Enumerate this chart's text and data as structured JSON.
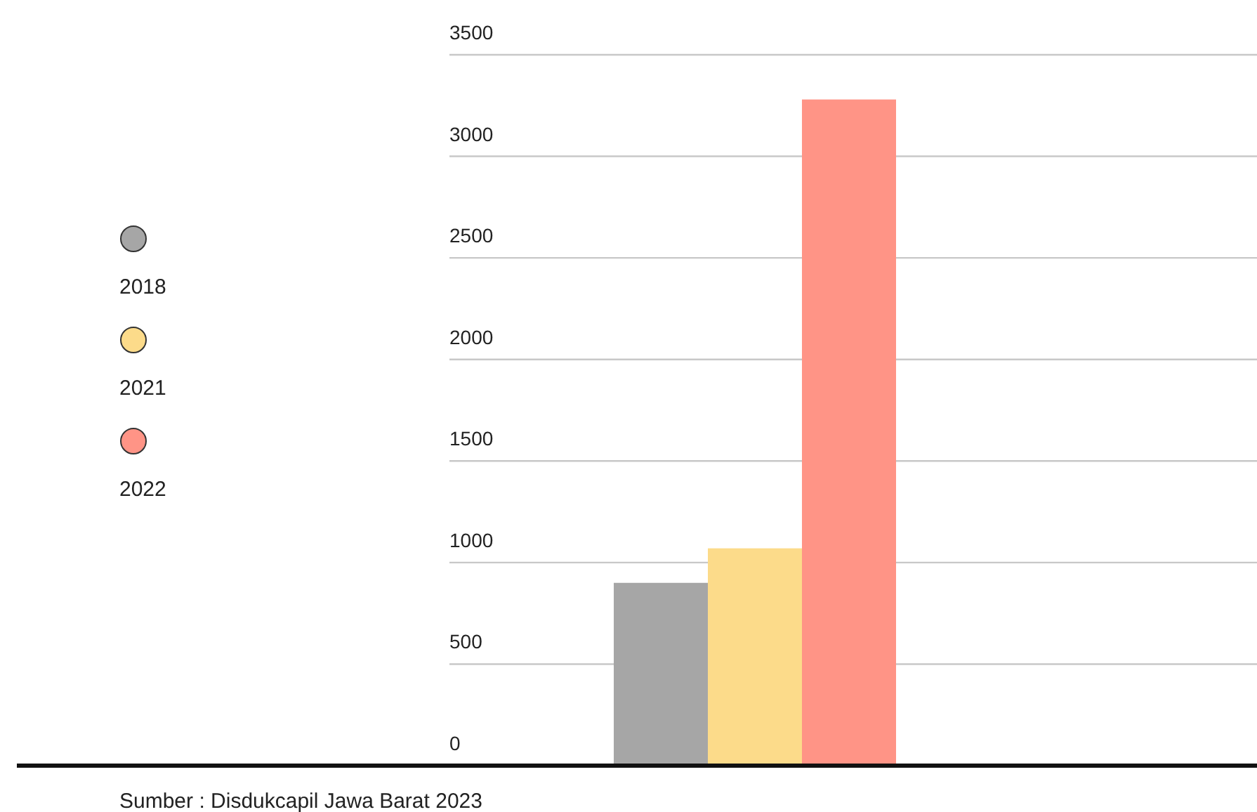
{
  "chart_data": {
    "type": "bar",
    "categories": [
      null
    ],
    "series": [
      {
        "name": "2018",
        "color": "#a6a6a6",
        "values": [
          900
        ]
      },
      {
        "name": "2021",
        "color": "#fcdb8a",
        "values": [
          1070
        ]
      },
      {
        "name": "2022",
        "color": "#ff9486",
        "values": [
          3280
        ]
      }
    ],
    "ylim": [
      0,
      3500
    ],
    "yticks": [
      0,
      500,
      1000,
      1500,
      2000,
      2500,
      3000,
      3500
    ],
    "grid": "y",
    "legend": "left",
    "annotations": [
      "Sumber : Disdukcapil Jawa Barat 2023"
    ]
  }
}
